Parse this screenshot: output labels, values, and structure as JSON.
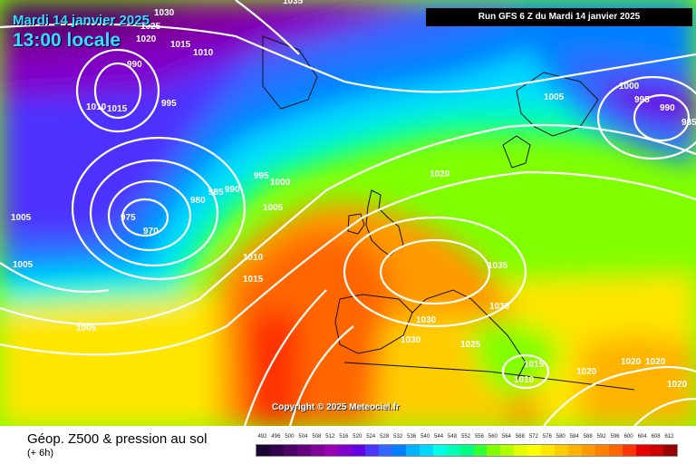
{
  "header": {
    "date": "Mardi 14 janvier 2025",
    "local_time": "13:00 locale",
    "run_info": "Run GFS 6 Z du Mardi 14 janvier 2025"
  },
  "footer": {
    "field_title": "Géop. Z500 & pression au sol",
    "lead_time": "(+ 6h)",
    "copyright": "Copyright © 2025 Meteociel.fr"
  },
  "legend": {
    "values": [
      "492",
      "496",
      "500",
      "504",
      "508",
      "512",
      "516",
      "520",
      "524",
      "528",
      "532",
      "536",
      "540",
      "544",
      "548",
      "552",
      "556",
      "560",
      "564",
      "568",
      "572",
      "576",
      "580",
      "584",
      "588",
      "592",
      "596",
      "600",
      "604",
      "608",
      "612"
    ],
    "colors": [
      "#1a0033",
      "#33004d",
      "#4d0066",
      "#660080",
      "#800099",
      "#9900b3",
      "#8000cc",
      "#6600e6",
      "#4d33ff",
      "#3366ff",
      "#0080ff",
      "#00b3ff",
      "#00d9ff",
      "#00ffe6",
      "#00ffb3",
      "#00ff80",
      "#33ff33",
      "#80ff00",
      "#b3ff00",
      "#e6ff00",
      "#ffff00",
      "#ffe600",
      "#ffcc00",
      "#ffb300",
      "#ff9900",
      "#ff8000",
      "#ff6600",
      "#ff3300",
      "#e60000",
      "#cc0000",
      "#990000"
    ]
  },
  "isobar_labels": [
    {
      "text": "1030"
    },
    {
      "text": "1025"
    },
    {
      "text": "1020"
    },
    {
      "text": "1015"
    },
    {
      "text": "1010"
    },
    {
      "text": "990"
    },
    {
      "text": "1010"
    },
    {
      "text": "1015"
    },
    {
      "text": "995"
    },
    {
      "text": "995"
    },
    {
      "text": "1000"
    },
    {
      "text": "985"
    },
    {
      "text": "990"
    },
    {
      "text": "980"
    },
    {
      "text": "975"
    },
    {
      "text": "970"
    },
    {
      "text": "1005"
    },
    {
      "text": "1005"
    },
    {
      "text": "1005"
    },
    {
      "text": "1005"
    },
    {
      "text": "1010"
    },
    {
      "text": "1015"
    },
    {
      "text": "1005"
    },
    {
      "text": "1000"
    },
    {
      "text": "995"
    },
    {
      "text": "990"
    },
    {
      "text": "985"
    },
    {
      "text": "1020"
    },
    {
      "text": "1035"
    },
    {
      "text": "1030"
    },
    {
      "text": "1030"
    },
    {
      "text": "1030"
    },
    {
      "text": "1025"
    },
    {
      "text": "1015"
    },
    {
      "text": "1010"
    },
    {
      "text": "1020"
    },
    {
      "text": "1020"
    },
    {
      "text": "1020"
    },
    {
      "text": "1020"
    },
    {
      "text": "1035"
    }
  ]
}
